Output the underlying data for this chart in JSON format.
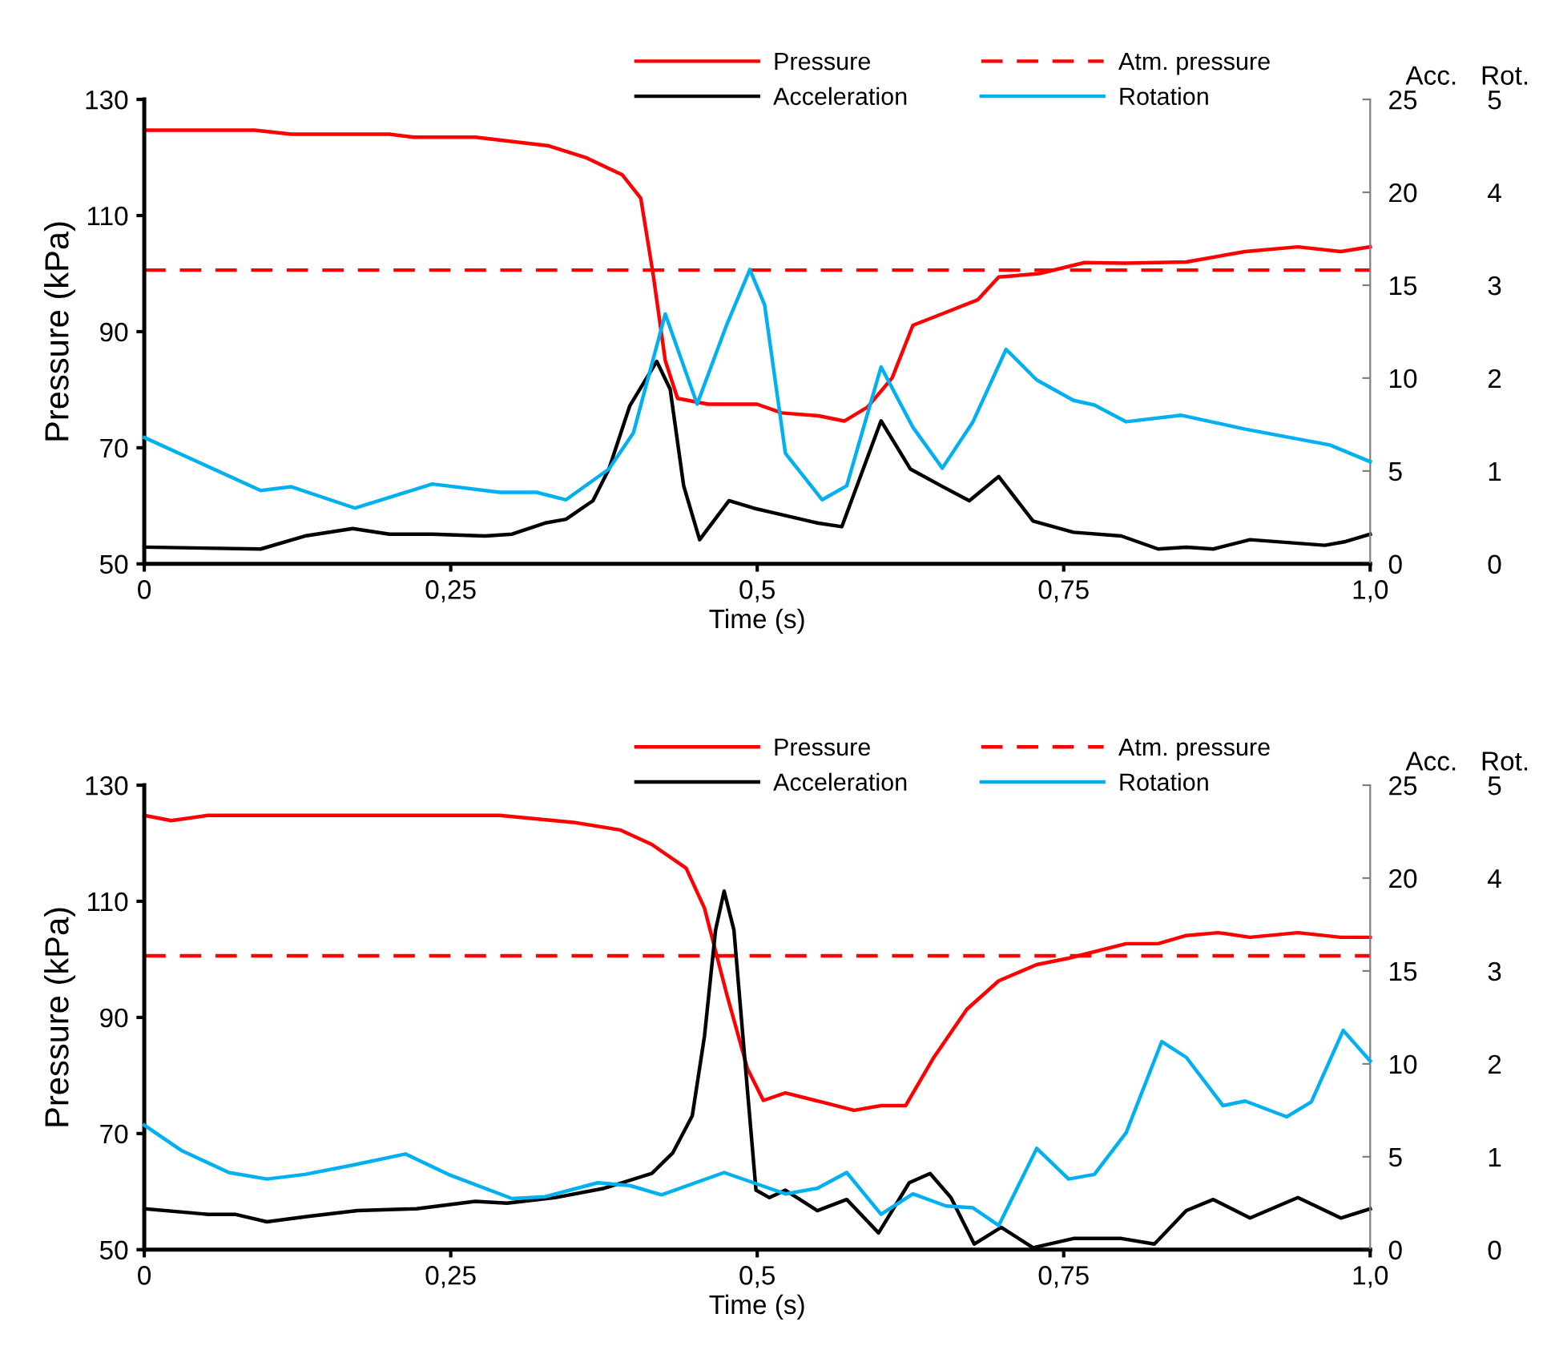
{
  "chart_data": [
    {
      "type": "line",
      "xlabel": "Time (s)",
      "ylabel": "Pressure (kPa)",
      "y2label": "Acc.",
      "y3label": "Rot.",
      "xlim": [
        0,
        1
      ],
      "xticks": [
        0,
        {
          "value": 0.25,
          "label": "0,25"
        },
        {
          "value": 0.5,
          "label": "0,5"
        },
        {
          "value": 0.75,
          "label": "0,75"
        },
        {
          "value": 1,
          "label": "1,0"
        }
      ],
      "ylim": [
        50,
        130
      ],
      "yticks": [
        50,
        70,
        90,
        110,
        130
      ],
      "y2lim": [
        0,
        25
      ],
      "y2ticks": [
        0,
        5,
        10,
        15,
        20,
        25
      ],
      "y3lim": [
        0,
        5
      ],
      "y3ticks": [
        0,
        1,
        2,
        3,
        4,
        5
      ],
      "legend": "top",
      "grid": false,
      "line_style": "solid",
      "marker": "none",
      "ref_lines": [
        {
          "axis": "y",
          "value": 100.6,
          "label": "Atm. pressure",
          "color": "#ff0000",
          "line_style": "dashed"
        }
      ],
      "series": [
        {
          "name": "Pressure",
          "color": "#ff0000",
          "axis": "y",
          "x": [
            0,
            0.09,
            0.12,
            0.2,
            0.22,
            0.27,
            0.33,
            0.36,
            0.39,
            0.405,
            0.415,
            0.425,
            0.435,
            0.46,
            0.5,
            0.52,
            0.55,
            0.571,
            0.59,
            0.61,
            0.627,
            0.65,
            0.68,
            0.697,
            0.73,
            0.767,
            0.8,
            0.85,
            0.898,
            0.941,
            0.976,
            1.0
          ],
          "values": [
            124.7,
            124.7,
            124.0,
            124.0,
            123.5,
            123.5,
            122.0,
            120.0,
            117.0,
            113.0,
            100.0,
            85.0,
            78.5,
            77.5,
            77.5,
            76.0,
            75.5,
            74.6,
            77.0,
            82.0,
            91.1,
            93.0,
            95.5,
            99.4,
            100.0,
            101.9,
            101.8,
            102.0,
            103.8,
            104.6,
            103.8,
            104.6
          ]
        },
        {
          "name": "Acceleration",
          "color": "#000000",
          "axis": "y2",
          "x": [
            0,
            0.095,
            0.131,
            0.17,
            0.2,
            0.235,
            0.278,
            0.3,
            0.327,
            0.344,
            0.366,
            0.379,
            0.396,
            0.418,
            0.429,
            0.44,
            0.453,
            0.477,
            0.497,
            0.51,
            0.549,
            0.569,
            0.601,
            0.625,
            0.65,
            0.673,
            0.697,
            0.725,
            0.758,
            0.797,
            0.827,
            0.85,
            0.872,
            0.902,
            0.963,
            0.98,
            1.0
          ],
          "values": [
            0.9,
            0.8,
            1.5,
            1.9,
            1.6,
            1.6,
            1.5,
            1.6,
            2.2,
            2.4,
            3.4,
            5.1,
            8.5,
            10.9,
            9.4,
            4.2,
            1.3,
            3.4,
            3.0,
            2.8,
            2.2,
            2.0,
            7.7,
            5.1,
            4.2,
            3.4,
            4.7,
            2.3,
            1.7,
            1.5,
            0.8,
            0.9,
            0.8,
            1.3,
            1.0,
            1.2,
            1.6
          ]
        },
        {
          "name": "Rotation",
          "color": "#00b0f0",
          "axis": "y3",
          "x": [
            0,
            0.095,
            0.12,
            0.172,
            0.235,
            0.29,
            0.32,
            0.344,
            0.379,
            0.399,
            0.425,
            0.451,
            0.475,
            0.494,
            0.506,
            0.523,
            0.553,
            0.573,
            0.601,
            0.627,
            0.651,
            0.676,
            0.703,
            0.728,
            0.758,
            0.775,
            0.801,
            0.846,
            0.898,
            0.967,
            1.0
          ],
          "values": [
            1.36,
            0.79,
            0.83,
            0.6,
            0.86,
            0.77,
            0.77,
            0.69,
            1.02,
            1.41,
            2.69,
            1.72,
            2.57,
            3.17,
            2.79,
            1.19,
            0.69,
            0.84,
            2.12,
            1.47,
            1.03,
            1.53,
            2.31,
            1.98,
            1.76,
            1.71,
            1.53,
            1.6,
            1.45,
            1.28,
            1.1
          ]
        }
      ]
    },
    {
      "type": "line",
      "xlabel": "Time (s)",
      "ylabel": "Pressure (kPa)",
      "y2label": "Acc.",
      "y3label": "Rot.",
      "xlim": [
        0,
        1
      ],
      "xticks": [
        0,
        {
          "value": 0.25,
          "label": "0,25"
        },
        {
          "value": 0.5,
          "label": "0,5"
        },
        {
          "value": 0.75,
          "label": "0,75"
        },
        {
          "value": 1,
          "label": "1,0"
        }
      ],
      "ylim": [
        50,
        130
      ],
      "yticks": [
        50,
        70,
        90,
        110,
        130
      ],
      "y2lim": [
        0,
        25
      ],
      "y2ticks": [
        0,
        5,
        10,
        15,
        20,
        25
      ],
      "y3lim": [
        0,
        5
      ],
      "y3ticks": [
        0,
        1,
        2,
        3,
        4,
        5
      ],
      "legend": "top",
      "grid": false,
      "line_style": "solid",
      "marker": "none",
      "ref_lines": [
        {
          "axis": "y",
          "value": 100.6,
          "label": "Atm. pressure",
          "color": "#ff0000",
          "line_style": "dashed"
        }
      ],
      "series": [
        {
          "name": "Pressure",
          "color": "#ff0000",
          "axis": "y",
          "x": [
            0,
            0.022,
            0.052,
            0.29,
            0.35,
            0.388,
            0.414,
            0.442,
            0.457,
            0.475,
            0.492,
            0.505,
            0.523,
            0.553,
            0.579,
            0.601,
            0.621,
            0.644,
            0.671,
            0.697,
            0.728,
            0.754,
            0.801,
            0.827,
            0.85,
            0.876,
            0.902,
            0.941,
            0.976,
            1.0
          ],
          "values": [
            124.8,
            123.9,
            124.8,
            124.8,
            123.6,
            122.3,
            119.8,
            115.7,
            108.8,
            94.1,
            81.2,
            75.7,
            77.0,
            75.4,
            74.0,
            74.8,
            74.8,
            83.1,
            91.4,
            96.3,
            99.1,
            100.2,
            102.7,
            102.7,
            104.1,
            104.6,
            103.8,
            104.6,
            103.8,
            103.8
          ]
        },
        {
          "name": "Acceleration",
          "color": "#000000",
          "axis": "y2",
          "x": [
            0,
            0.052,
            0.074,
            0.1,
            0.135,
            0.174,
            0.222,
            0.27,
            0.296,
            0.335,
            0.375,
            0.414,
            0.431,
            0.447,
            0.457,
            0.466,
            0.473,
            0.481,
            0.492,
            0.499,
            0.51,
            0.523,
            0.549,
            0.573,
            0.599,
            0.624,
            0.641,
            0.658,
            0.677,
            0.699,
            0.725,
            0.758,
            0.797,
            0.824,
            0.85,
            0.872,
            0.902,
            0.941,
            0.976,
            1.0
          ],
          "values": [
            2.2,
            1.9,
            1.9,
            1.5,
            1.8,
            2.1,
            2.2,
            2.6,
            2.5,
            2.8,
            3.3,
            4.1,
            5.2,
            7.2,
            11.5,
            17.2,
            19.3,
            17.2,
            8.6,
            3.2,
            2.8,
            3.2,
            2.1,
            2.7,
            0.9,
            3.6,
            4.1,
            2.8,
            0.3,
            1.2,
            0.1,
            0.6,
            0.6,
            0.3,
            2.1,
            2.7,
            1.7,
            2.8,
            1.7,
            2.2
          ]
        },
        {
          "name": "Rotation",
          "color": "#00b0f0",
          "axis": "y3",
          "x": [
            0,
            0.03,
            0.069,
            0.1,
            0.131,
            0.17,
            0.213,
            0.248,
            0.3,
            0.327,
            0.37,
            0.396,
            0.422,
            0.473,
            0.51,
            0.523,
            0.549,
            0.573,
            0.601,
            0.627,
            0.654,
            0.676,
            0.697,
            0.728,
            0.754,
            0.775,
            0.801,
            0.83,
            0.85,
            0.88,
            0.898,
            0.932,
            0.952,
            0.978,
            1.0
          ],
          "values": [
            1.34,
            1.07,
            0.83,
            0.76,
            0.81,
            0.91,
            1.03,
            0.81,
            0.55,
            0.57,
            0.72,
            0.69,
            0.59,
            0.83,
            0.66,
            0.6,
            0.66,
            0.83,
            0.38,
            0.6,
            0.47,
            0.45,
            0.26,
            1.09,
            0.76,
            0.81,
            1.26,
            2.24,
            2.07,
            1.55,
            1.6,
            1.43,
            1.59,
            2.36,
            2.03
          ]
        }
      ]
    }
  ]
}
